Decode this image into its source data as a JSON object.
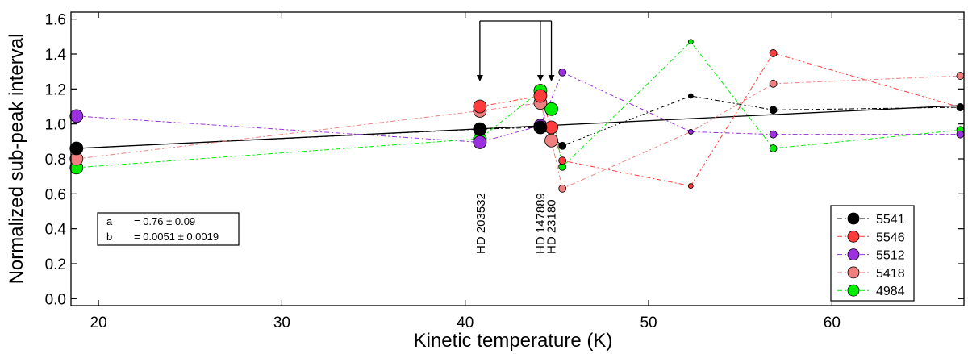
{
  "chart_data": {
    "type": "scatter",
    "title": "",
    "xlabel": "Kinetic  temperature (K)",
    "ylabel": "Normalized sub-peak interval",
    "xlim": [
      18.5,
      67.2
    ],
    "ylim": [
      -0.04,
      1.64
    ],
    "xticks": [
      20,
      30,
      40,
      50,
      60
    ],
    "xtick_labels": [
      "20",
      "30",
      "40",
      "50",
      "60"
    ],
    "yticks": [
      0.0,
      0.2,
      0.4,
      0.6,
      0.8,
      1.0,
      1.2,
      1.4,
      1.6
    ],
    "ytick_labels": [
      "0.0",
      "0.2",
      "0.4",
      "0.6",
      "0.8",
      "1.0",
      "1.2",
      "1.4",
      "1.6"
    ],
    "fit_line": {
      "label": "linear fit",
      "a": 0.76,
      "b": 0.0051,
      "x_range": [
        18.8,
        67.0
      ],
      "y_range": [
        0.86,
        1.105
      ]
    },
    "fit_box": {
      "a_label": "a",
      "a_text": "= 0.76 ± 0.09",
      "b_label": "b",
      "b_text": "= 0.0051 ± 0.0019"
    },
    "annotations": [
      {
        "text": "HD 203532",
        "x": 40.8
      },
      {
        "text": "HD 147889",
        "x": 44.1
      },
      {
        "text": "HD 23180",
        "x": 44.7
      }
    ],
    "series": [
      {
        "name": "5541",
        "color": "#000000",
        "x": [
          18.8,
          40.8,
          44.1,
          45.3,
          52.3,
          56.8,
          67.0
        ],
        "y": [
          0.86,
          0.97,
          0.98,
          0.875,
          1.16,
          1.08,
          1.095
        ],
        "sizes": [
          16,
          16,
          16,
          9,
          6,
          9,
          9
        ]
      },
      {
        "name": "5546",
        "color": "#ff3b3b",
        "x": [
          40.8,
          44.1,
          44.7,
          45.3,
          52.3,
          56.8,
          67.0
        ],
        "y": [
          1.1,
          1.16,
          0.98,
          0.79,
          0.645,
          1.405,
          1.095
        ],
        "sizes": [
          16,
          16,
          16,
          9,
          6,
          9,
          9
        ]
      },
      {
        "name": "5512",
        "color": "#9b30e0",
        "x": [
          18.8,
          40.8,
          44.1,
          45.3,
          52.3,
          56.8,
          67.0
        ],
        "y": [
          1.045,
          0.895,
          0.99,
          1.295,
          0.955,
          0.94,
          0.94
        ],
        "sizes": [
          16,
          16,
          16,
          9,
          6,
          9,
          9
        ]
      },
      {
        "name": "5418",
        "color": "#f08080",
        "x": [
          18.8,
          40.8,
          44.1,
          44.7,
          45.3,
          52.3,
          56.8,
          67.0
        ],
        "y": [
          0.8,
          1.075,
          1.12,
          0.905,
          0.63,
          0.955,
          1.23,
          1.275
        ],
        "sizes": [
          16,
          16,
          16,
          16,
          9,
          6,
          9,
          9
        ]
      },
      {
        "name": "4984",
        "color": "#00ee00",
        "x": [
          18.8,
          40.8,
          44.1,
          44.7,
          45.3,
          52.3,
          56.8,
          67.0
        ],
        "y": [
          0.75,
          0.915,
          1.19,
          1.085,
          0.755,
          1.47,
          0.86,
          0.965
        ],
        "sizes": [
          16,
          16,
          16,
          16,
          9,
          6,
          9,
          9
        ]
      }
    ],
    "legend": {
      "position": "bottom-right",
      "entries": [
        "5541",
        "5546",
        "5512",
        "5418",
        "4984"
      ]
    }
  }
}
